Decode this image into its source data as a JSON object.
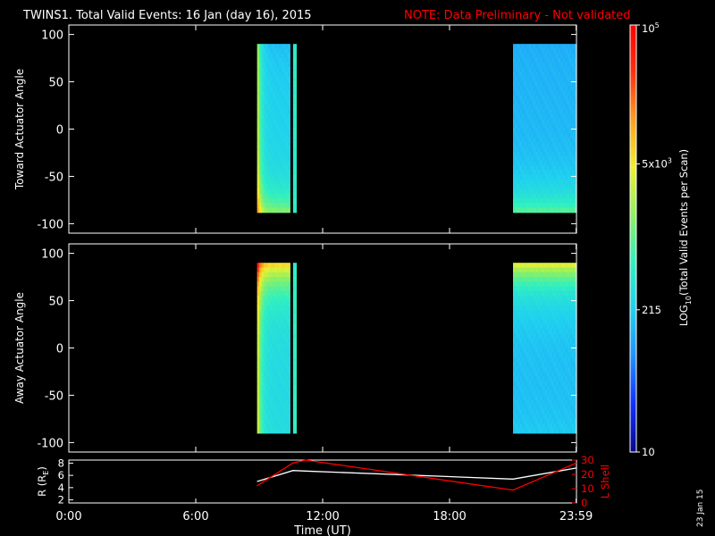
{
  "header": {
    "title": "TWINS1. Total Valid Events: 16 Jan (day  16), 2015",
    "note": "NOTE: Data Preliminary - Not validated"
  },
  "colors": {
    "background": "#000000",
    "axes": "#ffffff",
    "note": "#ff0000",
    "r_line": "#ffffff",
    "lshell_line": "#ff0000"
  },
  "colorbar": {
    "label": "LOG",
    "label_sub": "10",
    "label_rest": "(Total Valid Events per Scan)",
    "ticks": [
      {
        "value": 10,
        "text": "10"
      },
      {
        "value": 215,
        "text": "215"
      },
      {
        "value": 5000,
        "text": "5x10",
        "sup": "3"
      },
      {
        "value": 100000,
        "text": "10",
        "sup": "5"
      }
    ],
    "min": 10,
    "max": 100000,
    "scale": "log",
    "colormap": [
      "#08088a",
      "#1030ff",
      "#2090ff",
      "#20d0f0",
      "#30f0c0",
      "#90f060",
      "#f0f030",
      "#ffa020",
      "#ff3010",
      "#ff0000"
    ]
  },
  "x_axis": {
    "label": "Time (UT)",
    "ticks": [
      {
        "value": 0,
        "text": "0:00"
      },
      {
        "value": 6,
        "text": "6:00"
      },
      {
        "value": 12,
        "text": "12:00"
      },
      {
        "value": 18,
        "text": "18:00"
      },
      {
        "value": 23.983,
        "text": "23:59"
      }
    ],
    "range": [
      0,
      24
    ]
  },
  "date_stamp": "23 Jan 15",
  "chart_data": [
    {
      "type": "heatmap",
      "ylabel": "Toward Actuator Angle",
      "ylim": [
        -110,
        110
      ],
      "yticks": [
        -100,
        -50,
        0,
        50,
        100
      ],
      "angle_range": [
        -88,
        90
      ],
      "segments": [
        {
          "t_start": 8.9,
          "t_end": 10.45,
          "edge_log": 3.65,
          "interior_log": 2.35,
          "bottom_log": 3.2,
          "top_log": 2.2
        },
        {
          "t_start": 10.6,
          "t_end": 10.75,
          "edge_log": 2.7,
          "interior_log": 2.7,
          "bottom_log": 2.7,
          "top_log": 2.7
        },
        {
          "t_start": 21.0,
          "t_end": 24.0,
          "edge_log": 2.15,
          "interior_log": 2.15,
          "bottom_log": 3.0,
          "top_log": 2.1
        }
      ]
    },
    {
      "type": "heatmap",
      "ylabel": "Away Actuator Angle",
      "ylim": [
        -110,
        110
      ],
      "yticks": [
        -100,
        -50,
        0,
        50,
        100
      ],
      "angle_range": [
        -90,
        90
      ],
      "segments": [
        {
          "t_start": 8.9,
          "t_end": 10.45,
          "edge_log": 3.75,
          "interior_log": 2.45,
          "bottom_log": 2.5,
          "top_log": 3.9
        },
        {
          "t_start": 10.6,
          "t_end": 10.75,
          "edge_log": 2.75,
          "interior_log": 2.75,
          "bottom_log": 2.75,
          "top_log": 2.75
        },
        {
          "t_start": 21.0,
          "t_end": 24.0,
          "edge_log": 2.2,
          "interior_log": 2.2,
          "bottom_log": 2.3,
          "top_log": 3.7
        }
      ]
    },
    {
      "type": "line",
      "ylabel": "R (R",
      "ylabel_sub": "E",
      "ylabel_end": ")",
      "ylim": [
        1.5,
        8.5
      ],
      "yticks": [
        2,
        4,
        6,
        8
      ],
      "y2label": "L Shell",
      "y2lim": [
        0,
        30
      ],
      "y2ticks": [
        0,
        10,
        20,
        30
      ],
      "series": [
        {
          "name": "R (RE)",
          "axis": "left",
          "x": [
            8.9,
            10.6,
            11.2,
            21.0,
            24.0
          ],
          "y": [
            5.0,
            6.8,
            6.7,
            5.4,
            7.2
          ]
        },
        {
          "name": "L Shell",
          "axis": "right",
          "x": [
            8.9,
            10.6,
            11.2,
            21.0,
            24.0
          ],
          "y": [
            12,
            28,
            30,
            9,
            28
          ]
        }
      ]
    }
  ]
}
